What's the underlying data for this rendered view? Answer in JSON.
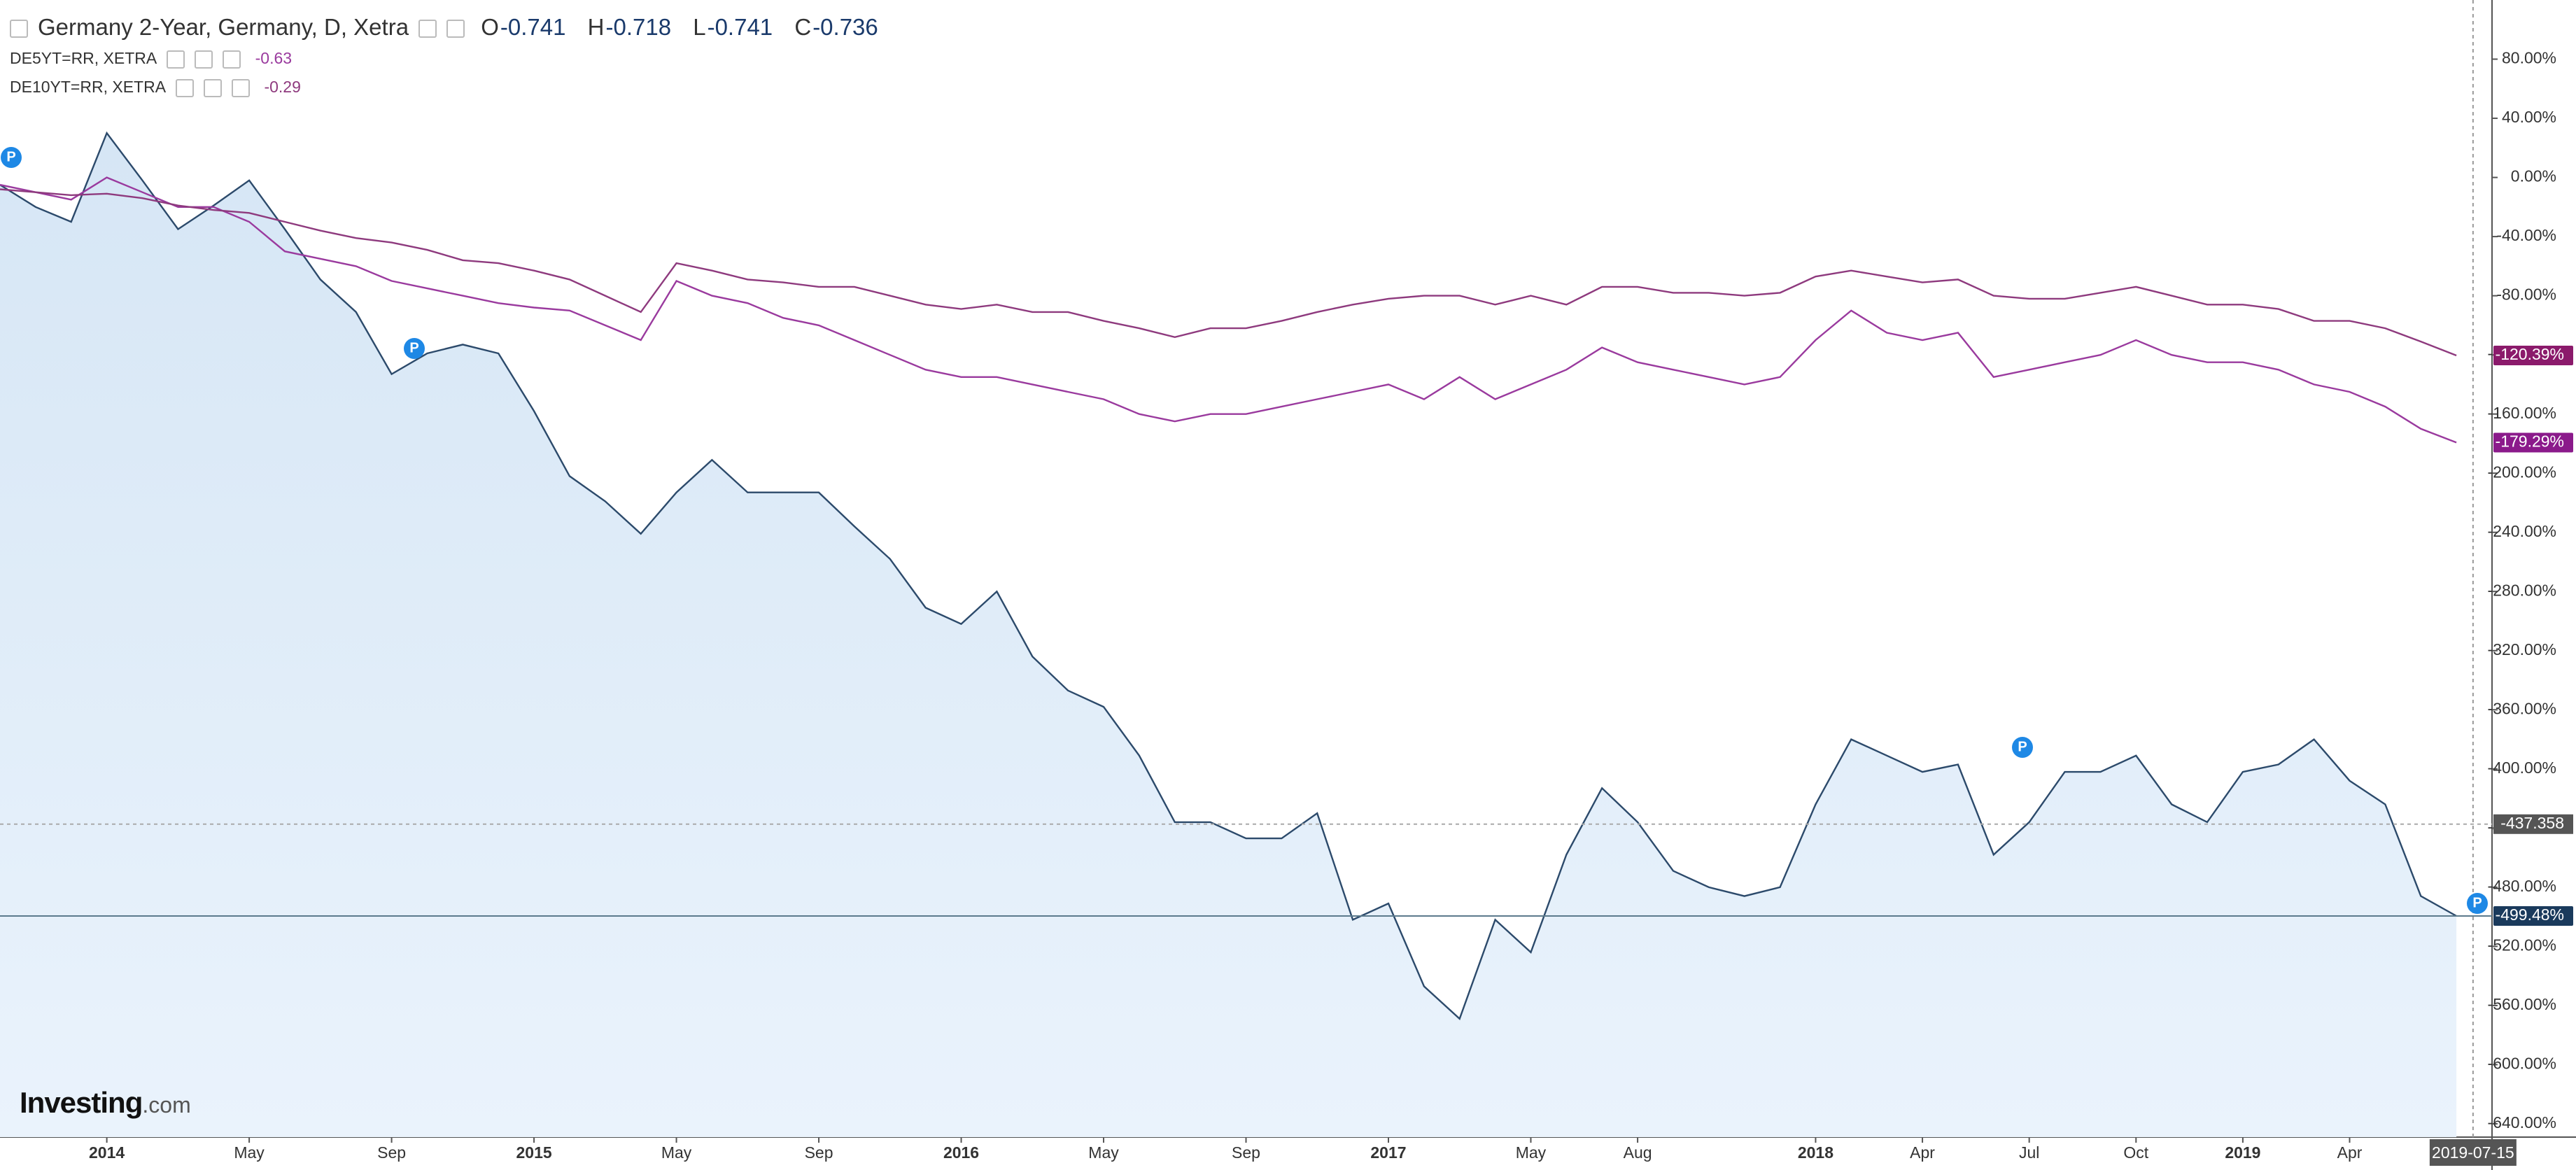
{
  "chart_data": {
    "type": "line",
    "marker_label": "P",
    "logo": {
      "name": "Investing",
      "suffix": ".com"
    },
    "ohlc": {
      "open_label": "O",
      "open": -0.741,
      "high_label": "H",
      "high": -0.718,
      "low_label": "L",
      "low": -0.741,
      "close_label": "C",
      "close": -0.736
    },
    "xlim": [
      "2013-10",
      "2019-08"
    ],
    "ylim": [
      -649,
      120
    ],
    "x": [
      "2013-10",
      "2013-11",
      "2013-12",
      "2014-01",
      "2014-02",
      "2014-03",
      "2014-04",
      "2014-05",
      "2014-06",
      "2014-07",
      "2014-08",
      "2014-09",
      "2014-10",
      "2014-11",
      "2014-12",
      "2015-01",
      "2015-02",
      "2015-03",
      "2015-04",
      "2015-05",
      "2015-06",
      "2015-07",
      "2015-08",
      "2015-09",
      "2015-10",
      "2015-11",
      "2015-12",
      "2016-01",
      "2016-02",
      "2016-03",
      "2016-04",
      "2016-05",
      "2016-06",
      "2016-07",
      "2016-08",
      "2016-09",
      "2016-10",
      "2016-11",
      "2016-12",
      "2017-01",
      "2017-02",
      "2017-03",
      "2017-04",
      "2017-05",
      "2017-06",
      "2017-07",
      "2017-08",
      "2017-09",
      "2017-10",
      "2017-11",
      "2017-12",
      "2018-01",
      "2018-02",
      "2018-03",
      "2018-04",
      "2018-05",
      "2018-06",
      "2018-07",
      "2018-08",
      "2018-09",
      "2018-10",
      "2018-11",
      "2018-12",
      "2019-01",
      "2019-02",
      "2019-03",
      "2019-04",
      "2019-05",
      "2019-06",
      "2019-07"
    ],
    "xticks": [
      {
        "value": "2014-01",
        "label": "2014"
      },
      {
        "value": "2014-05",
        "label": "May"
      },
      {
        "value": "2014-09",
        "label": "Sep"
      },
      {
        "value": "2015-01",
        "label": "2015"
      },
      {
        "value": "2015-05",
        "label": "May"
      },
      {
        "value": "2015-09",
        "label": "Sep"
      },
      {
        "value": "2016-01",
        "label": "2016"
      },
      {
        "value": "2016-05",
        "label": "May"
      },
      {
        "value": "2016-09",
        "label": "Sep"
      },
      {
        "value": "2017-01",
        "label": "2017"
      },
      {
        "value": "2017-05",
        "label": "May"
      },
      {
        "value": "2017-08",
        "label": "Aug"
      },
      {
        "value": "2018-01",
        "label": "2018"
      },
      {
        "value": "2018-04",
        "label": "Apr"
      },
      {
        "value": "2018-07",
        "label": "Jul"
      },
      {
        "value": "2018-10",
        "label": "Oct"
      },
      {
        "value": "2019-01",
        "label": "2019"
      },
      {
        "value": "2019-04",
        "label": "Apr"
      }
    ],
    "yticks": [
      {
        "value": 80,
        "label": "80.00%"
      },
      {
        "value": 40,
        "label": "40.00%"
      },
      {
        "value": 0,
        "label": "0.00%"
      },
      {
        "value": -40,
        "label": "-40.00%"
      },
      {
        "value": -80,
        "label": "-80.00%"
      },
      {
        "value": -120,
        "label": "-120.00%"
      },
      {
        "value": -160,
        "label": "-160.00%"
      },
      {
        "value": -200,
        "label": "-200.00%"
      },
      {
        "value": -240,
        "label": "-240.00%"
      },
      {
        "value": -280,
        "label": "-280.00%"
      },
      {
        "value": -320,
        "label": "-320.00%"
      },
      {
        "value": -360,
        "label": "-360.00%"
      },
      {
        "value": -400,
        "label": "-400.00%"
      },
      {
        "value": -440,
        "label": "-440.00%"
      },
      {
        "value": -480,
        "label": "-480.00%"
      },
      {
        "value": -520,
        "label": "-520.00%"
      },
      {
        "value": -560,
        "label": "-560.00%"
      },
      {
        "value": -600,
        "label": "-600.00%"
      },
      {
        "value": -640,
        "label": "-640.00%"
      }
    ],
    "crosshair": {
      "x": "2019-07-15",
      "y": -437.358
    },
    "series": [
      {
        "name": "Germany 2-Year, Germany, D, Xetra",
        "color": "#2c4a6b",
        "area": true,
        "label_color": "#1a3a5c",
        "values": [
          -5,
          -20,
          -30,
          30,
          -2,
          -35,
          -19,
          -2,
          -35,
          -69,
          -91,
          -133,
          -119,
          -113,
          -119,
          -158,
          -202,
          -219,
          -241,
          -213,
          -191,
          -213,
          -213,
          -213,
          -236,
          -258,
          -291,
          -302,
          -280,
          -324,
          -347,
          -358,
          -391,
          -436,
          -436,
          -447,
          -447,
          -430,
          -502,
          -491,
          -547,
          -569,
          -502,
          -524,
          -458,
          -413,
          -436,
          -469,
          -480,
          -486,
          -480,
          -424,
          -380,
          -391,
          -402,
          -397,
          -458,
          -436,
          -402,
          -402,
          -391,
          -424,
          -436,
          -402,
          -397,
          -380,
          -408,
          -424,
          -486,
          -499.48
        ],
        "value_labels": [
          null,
          null,
          null,
          null,
          null,
          null,
          null,
          null,
          null,
          null,
          null,
          null,
          null,
          null,
          null,
          null,
          null,
          null,
          null,
          null,
          null,
          null,
          null,
          null,
          null,
          null,
          null,
          null,
          null,
          null,
          null,
          null,
          null,
          null,
          null,
          null,
          null,
          null,
          null,
          null,
          null,
          null,
          null,
          null,
          null,
          null,
          null,
          null,
          null,
          null,
          null,
          null,
          null,
          null,
          null,
          null,
          null,
          null,
          null,
          null,
          null,
          null,
          null,
          null,
          null,
          null,
          null,
          null,
          null,
          "-499.48%"
        ]
      },
      {
        "name": "DE5YT=RR, XETRA",
        "legend_value": -0.63,
        "color": "#9a3a9e",
        "label_color": "#8b1a8b",
        "values": [
          -5,
          -10,
          -15,
          0,
          -10,
          -20,
          -20,
          -30,
          -50,
          -55,
          -60,
          -70,
          -75,
          -80,
          -85,
          -88,
          -90,
          -100,
          -110,
          -70,
          -80,
          -85,
          -95,
          -100,
          -110,
          -120,
          -130,
          -135,
          -135,
          -140,
          -145,
          -150,
          -160,
          -165,
          -160,
          -160,
          -155,
          -150,
          -145,
          -140,
          -150,
          -135,
          -150,
          -140,
          -130,
          -115,
          -125,
          -130,
          -135,
          -140,
          -135,
          -110,
          -90,
          -105,
          -110,
          -105,
          -135,
          -130,
          -125,
          -120,
          -110,
          -120,
          -125,
          -125,
          -130,
          -140,
          -145,
          -155,
          -170,
          -179.29
        ],
        "value_labels": [
          null,
          null,
          null,
          null,
          null,
          null,
          null,
          null,
          null,
          null,
          null,
          null,
          null,
          null,
          null,
          null,
          null,
          null,
          null,
          null,
          null,
          null,
          null,
          null,
          null,
          null,
          null,
          null,
          null,
          null,
          null,
          null,
          null,
          null,
          null,
          null,
          null,
          null,
          null,
          null,
          null,
          null,
          null,
          null,
          null,
          null,
          null,
          null,
          null,
          null,
          null,
          null,
          null,
          null,
          null,
          null,
          null,
          null,
          null,
          null,
          null,
          null,
          null,
          null,
          null,
          null,
          null,
          null,
          null,
          "-179.29%"
        ]
      },
      {
        "name": "DE10YT=RR, XETRA",
        "legend_value": -0.29,
        "color": "#8e3a7e",
        "label_color": "#8b1a6b",
        "values": [
          -8,
          -10,
          -12,
          -11,
          -14,
          -19,
          -22,
          -24,
          -30,
          -36,
          -41,
          -44,
          -49,
          -56,
          -58,
          -63,
          -69,
          -80,
          -91,
          -58,
          -63,
          -69,
          -71,
          -74,
          -74,
          -80,
          -86,
          -89,
          -86,
          -91,
          -91,
          -97,
          -102,
          -108,
          -102,
          -102,
          -97,
          -91,
          -86,
          -82,
          -80,
          -80,
          -86,
          -80,
          -86,
          -74,
          -74,
          -78,
          -78,
          -80,
          -78,
          -67,
          -63,
          -67,
          -71,
          -69,
          -80,
          -82,
          -82,
          -78,
          -74,
          -80,
          -86,
          -86,
          -89,
          -97,
          -97,
          -102,
          -111,
          -120.39
        ],
        "value_labels": [
          null,
          null,
          null,
          null,
          null,
          null,
          null,
          null,
          null,
          null,
          null,
          null,
          null,
          null,
          null,
          null,
          null,
          null,
          null,
          null,
          null,
          null,
          null,
          null,
          null,
          null,
          null,
          null,
          null,
          null,
          null,
          null,
          null,
          null,
          null,
          null,
          null,
          null,
          null,
          null,
          null,
          null,
          null,
          null,
          null,
          null,
          null,
          null,
          null,
          null,
          null,
          null,
          null,
          null,
          null,
          null,
          null,
          null,
          null,
          null,
          null,
          null,
          null,
          null,
          null,
          null,
          null,
          null,
          null,
          "-120.39%"
        ]
      }
    ]
  }
}
